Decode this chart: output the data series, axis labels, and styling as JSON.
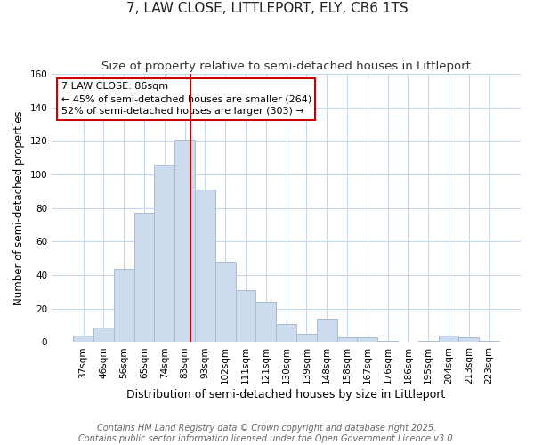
{
  "title": "7, LAW CLOSE, LITTLEPORT, ELY, CB6 1TS",
  "subtitle": "Size of property relative to semi-detached houses in Littleport",
  "xlabel": "Distribution of semi-detached houses by size in Littleport",
  "ylabel": "Number of semi-detached properties",
  "categories": [
    "37sqm",
    "46sqm",
    "56sqm",
    "65sqm",
    "74sqm",
    "83sqm",
    "93sqm",
    "102sqm",
    "111sqm",
    "121sqm",
    "130sqm",
    "139sqm",
    "148sqm",
    "158sqm",
    "167sqm",
    "176sqm",
    "186sqm",
    "195sqm",
    "204sqm",
    "213sqm",
    "223sqm"
  ],
  "values": [
    4,
    9,
    44,
    77,
    106,
    121,
    91,
    48,
    31,
    24,
    11,
    5,
    14,
    3,
    3,
    1,
    0,
    1,
    4,
    3,
    1
  ],
  "bar_color": "#ccdcee",
  "bar_edge_color": "#aabcce",
  "vline_color": "#cc0000",
  "vline_position": 5.3,
  "annotation_title": "7 LAW CLOSE: 86sqm",
  "annotation_line1": "← 45% of semi-detached houses are smaller (264)",
  "annotation_line2": "52% of semi-detached houses are larger (303) →",
  "annotation_box_color": "#ffffff",
  "annotation_box_edge": "#cc0000",
  "ylim": [
    0,
    160
  ],
  "yticks": [
    0,
    20,
    40,
    60,
    80,
    100,
    120,
    140,
    160
  ],
  "footer": "Contains HM Land Registry data © Crown copyright and database right 2025.\nContains public sector information licensed under the Open Government Licence v3.0.",
  "background_color": "#ffffff",
  "grid_color": "#c8d8ec",
  "title_fontsize": 11,
  "subtitle_fontsize": 9.5,
  "xlabel_fontsize": 9,
  "ylabel_fontsize": 8.5,
  "tick_fontsize": 7.5,
  "footer_fontsize": 7,
  "annotation_fontsize": 8
}
